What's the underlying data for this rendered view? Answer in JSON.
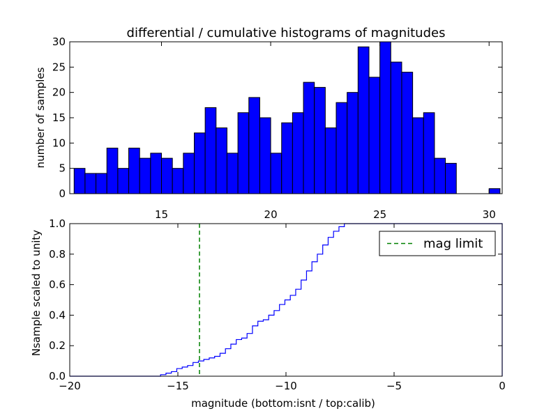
{
  "figure": {
    "title": "differential / cumulative histograms of magnitudes"
  },
  "chart_data": [
    {
      "type": "bar",
      "title": "differential / cumulative histograms of magnitudes",
      "xlabel": "",
      "ylabel": "number of samples",
      "xlim": [
        10.8,
        30.6
      ],
      "ylim": [
        0,
        30
      ],
      "x_ticks": [
        "15",
        "20",
        "25",
        "30"
      ],
      "y_ticks": [
        "0",
        "5",
        "10",
        "15",
        "20",
        "25",
        "30"
      ],
      "bar_color": "#0000ff",
      "bin_width": 0.5,
      "bins_start": [
        11.0,
        11.5,
        12.0,
        12.5,
        13.0,
        13.5,
        14.0,
        14.5,
        15.0,
        15.5,
        16.0,
        16.5,
        17.0,
        17.5,
        18.0,
        18.5,
        19.0,
        19.5,
        20.0,
        20.5,
        21.0,
        21.5,
        22.0,
        22.5,
        23.0,
        23.5,
        24.0,
        24.5,
        25.0,
        25.5,
        26.0,
        26.5,
        27.0,
        27.5,
        28.0,
        28.5,
        29.0,
        29.5,
        30.0
      ],
      "values": [
        5,
        4,
        4,
        9,
        5,
        9,
        7,
        8,
        7,
        5,
        8,
        12,
        17,
        13,
        8,
        16,
        19,
        15,
        8,
        14,
        16,
        22,
        21,
        13,
        18,
        20,
        29,
        23,
        30,
        26,
        24,
        15,
        16,
        7,
        6,
        0,
        0,
        0,
        1
      ],
      "grid": false
    },
    {
      "type": "line",
      "title": "",
      "xlabel": "magnitude (bottom:isnt / top:calib)",
      "ylabel": "Nsample scaled to unity",
      "xlim": [
        -20,
        0
      ],
      "ylim": [
        0,
        1.0
      ],
      "x_ticks": [
        "−20",
        "−15",
        "−10",
        "−5",
        "0"
      ],
      "y_ticks": [
        "0.0",
        "0.2",
        "0.4",
        "0.6",
        "0.8",
        "1.0"
      ],
      "line_color": "#0000ff",
      "series": [
        {
          "x": [
            -20,
            -15.8,
            -15.55,
            -15.3,
            -15.05,
            -14.8,
            -14.55,
            -14.3,
            -14.05,
            -13.8,
            -13.55,
            -13.3,
            -13.05,
            -12.8,
            -12.55,
            -12.3,
            -12.05,
            -11.8,
            -11.55,
            -11.3,
            -11.05,
            -10.8,
            -10.55,
            -10.3,
            -10.05,
            -9.8,
            -9.55,
            -9.3,
            -9.05,
            -8.8,
            -8.55,
            -8.3,
            -8.05,
            -7.8,
            -7.55,
            -7.3,
            0
          ],
          "y": [
            0,
            0.01,
            0.02,
            0.03,
            0.05,
            0.06,
            0.07,
            0.09,
            0.1,
            0.11,
            0.12,
            0.13,
            0.15,
            0.18,
            0.21,
            0.24,
            0.25,
            0.28,
            0.33,
            0.36,
            0.37,
            0.4,
            0.43,
            0.47,
            0.5,
            0.53,
            0.57,
            0.63,
            0.69,
            0.75,
            0.8,
            0.86,
            0.91,
            0.95,
            0.98,
            1.0,
            1.0
          ]
        }
      ],
      "reference_lines": [
        {
          "name": "mag limit",
          "x": -14,
          "color": "#008000",
          "style": "dashed"
        }
      ],
      "legend": {
        "placement": "top-right",
        "entries": [
          "mag limit"
        ]
      },
      "grid": false
    }
  ]
}
